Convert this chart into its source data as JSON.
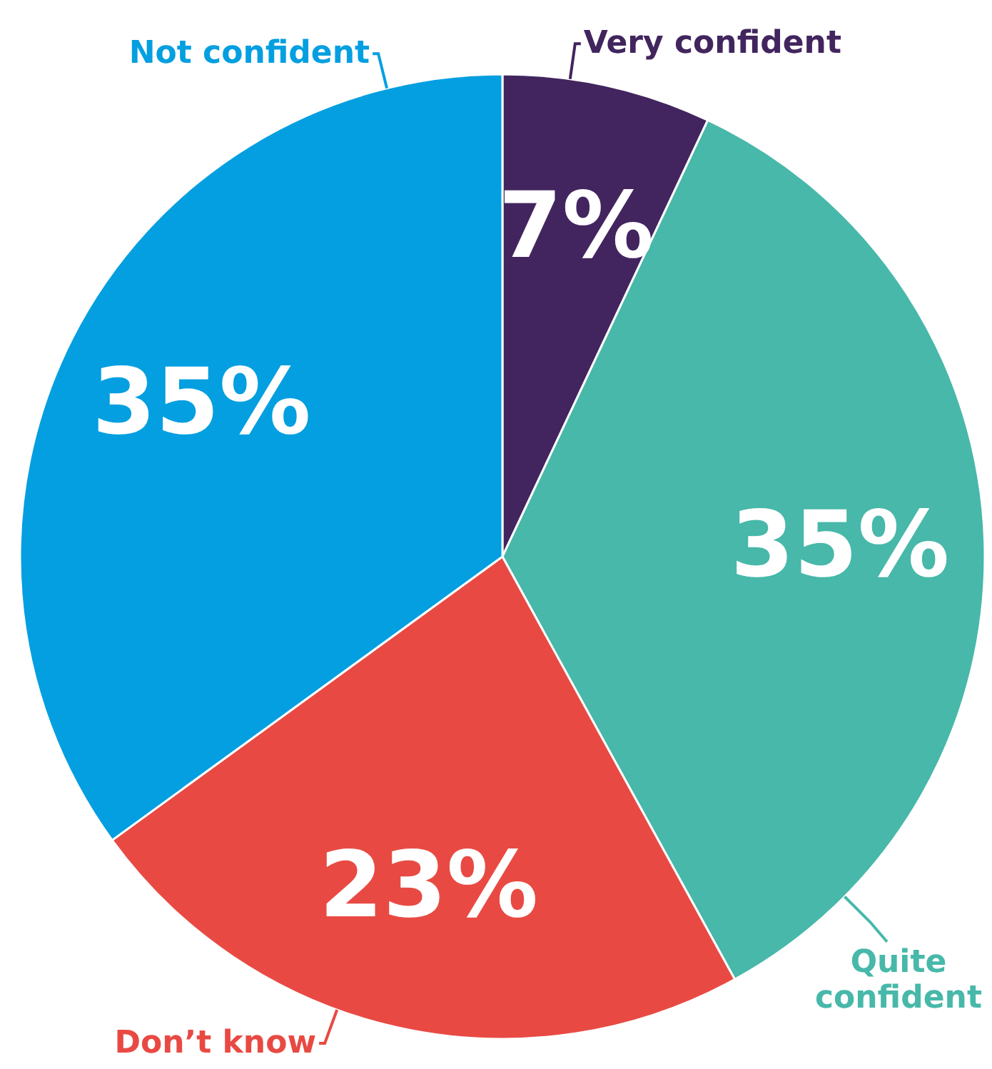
{
  "chart_data": {
    "type": "pie",
    "categories": [
      "Very confident",
      "Quite confident",
      "Don’t know",
      "Not confident"
    ],
    "values": [
      7,
      35,
      23,
      35
    ],
    "colors": [
      "#42255e",
      "#47b8a9",
      "#e84a43",
      "#039fe0"
    ],
    "value_labels": [
      "7%",
      "35%",
      "23%",
      "35%"
    ]
  }
}
